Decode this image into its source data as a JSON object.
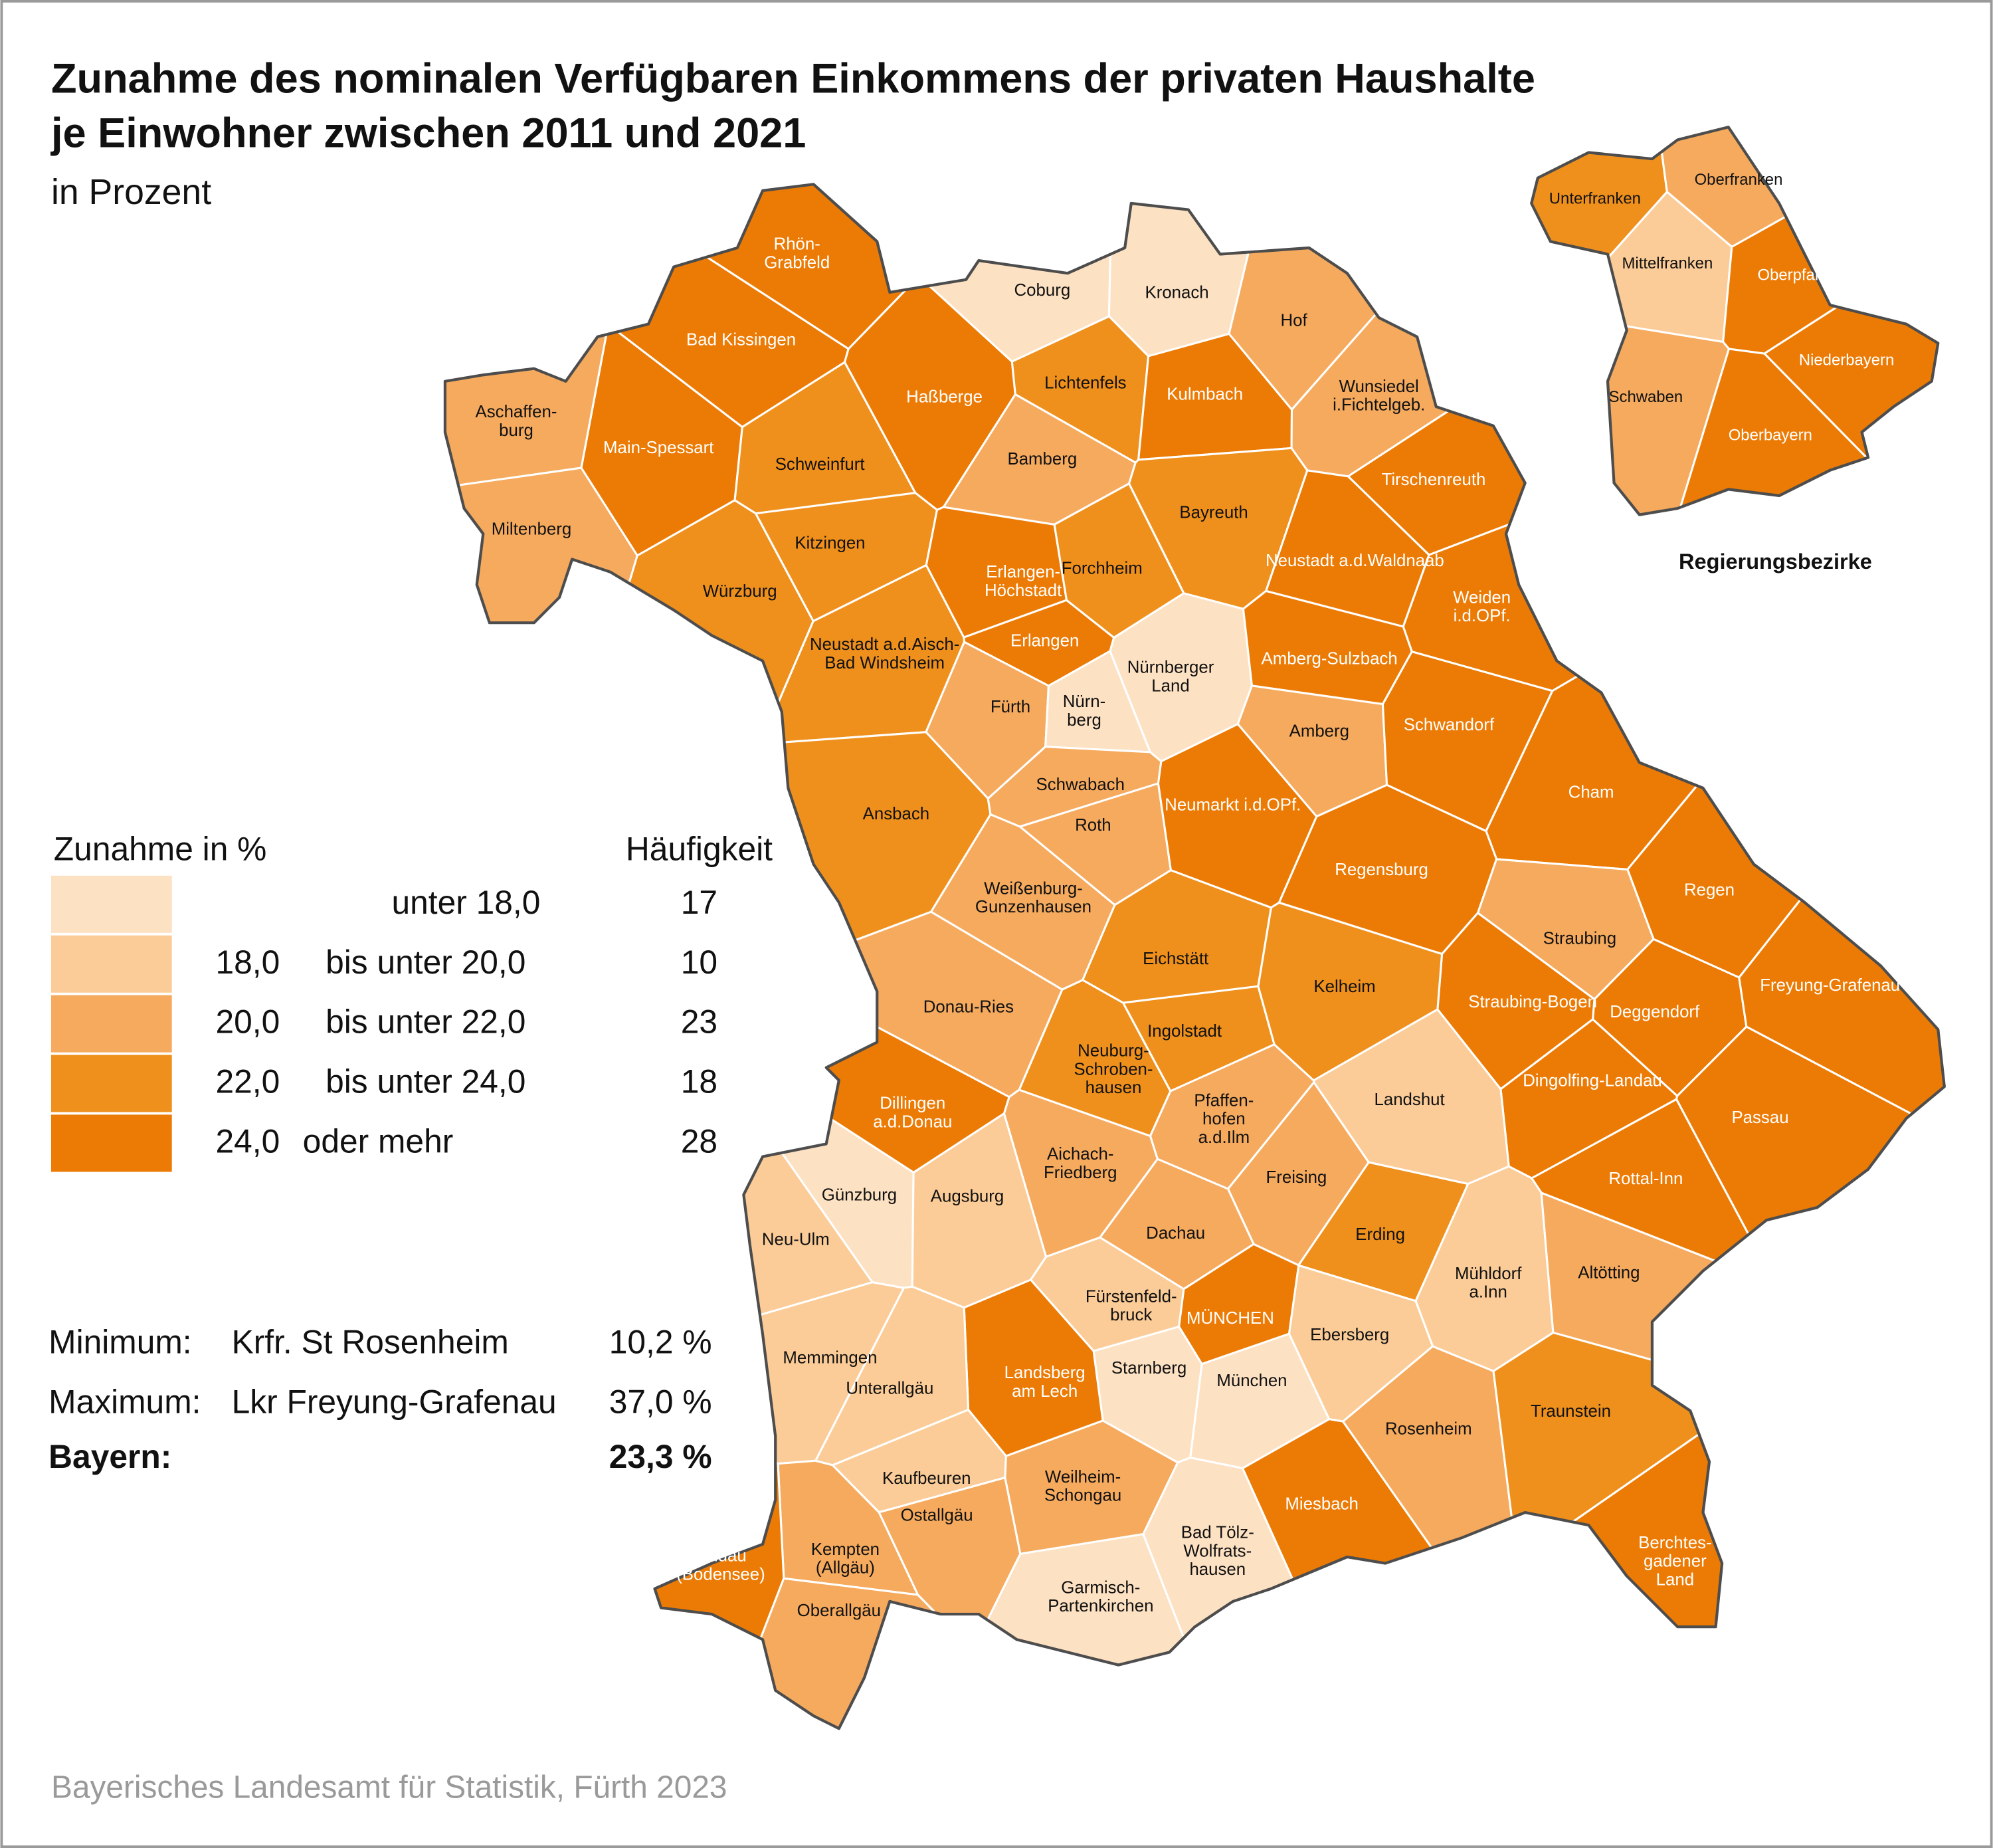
{
  "title": "Zunahme des nominalen Verfügbaren Einkommens der privaten Haushalte\nje Einwohner zwischen 2011 und 2021",
  "subtitle": "in Prozent",
  "legend": {
    "title": "Zunahme in %",
    "count_header": "Häufigkeit",
    "classes": [
      {
        "text": "unter 18,0",
        "count": 17,
        "color": "#fde1c3"
      },
      {
        "lower": "18,0",
        "text": "bis unter 20,0",
        "count": 10,
        "color": "#fbcc97"
      },
      {
        "lower": "20,0",
        "text": "bis unter 22,0",
        "count": 23,
        "color": "#f5aa5e"
      },
      {
        "lower": "22,0",
        "text": "bis unter 24,0",
        "count": 18,
        "color": "#ef901d"
      },
      {
        "lower": "24,0",
        "text": "oder mehr",
        "count": 28,
        "color": "#ec7b05"
      }
    ]
  },
  "stats": [
    {
      "label": "Minimum:",
      "region": "Krfr. St Rosenheim",
      "value": "10,2 %"
    },
    {
      "label": "Maximum:",
      "region": "Lkr Freyung-Grafenau",
      "value": "37,0 %"
    },
    {
      "label": "Bayern:",
      "value": "23,3 %",
      "emphasis": true
    }
  ],
  "districts": [
    {
      "label": "Rhön-\nGrabfeld",
      "class": 4
    },
    {
      "label": "Bad Kissingen",
      "class": 4
    },
    {
      "label": "Haßberge",
      "class": 4
    },
    {
      "label": "Schweinfurt",
      "class": 3
    },
    {
      "label": "Main-Spessart",
      "class": 4
    },
    {
      "label": "Aschaffen-\nburg",
      "class": 2
    },
    {
      "label": "Miltenberg",
      "class": 2
    },
    {
      "label": "Würzburg",
      "class": 3
    },
    {
      "label": "Kitzingen",
      "class": 3
    },
    {
      "label": "Coburg",
      "class": 0
    },
    {
      "label": "Kronach",
      "class": 0
    },
    {
      "label": "Lichtenfels",
      "class": 3
    },
    {
      "label": "Hof",
      "class": 2
    },
    {
      "label": "Kulmbach",
      "class": 4
    },
    {
      "label": "Bamberg",
      "class": 2
    },
    {
      "label": "Bayreuth",
      "class": 3
    },
    {
      "label": "Wunsiedel\ni.Fichtelgeb.",
      "class": 2
    },
    {
      "label": "Forchheim",
      "class": 3
    },
    {
      "label": "Erlangen-\nHöchstadt",
      "class": 4
    },
    {
      "label": "Erlangen",
      "class": 4
    },
    {
      "label": "Neustadt a.d.Aisch-\nBad Windsheim",
      "class": 3
    },
    {
      "label": "Fürth",
      "class": 2
    },
    {
      "label": "Nürn-\nberg",
      "class": 0
    },
    {
      "label": "Nürnberger\nLand",
      "class": 0
    },
    {
      "label": "Ansbach",
      "class": 3
    },
    {
      "label": "Schwabach",
      "class": 2
    },
    {
      "label": "Roth",
      "class": 2
    },
    {
      "label": "Weißenburg-\nGunzenhausen",
      "class": 2
    },
    {
      "label": "Tirschenreuth",
      "class": 4
    },
    {
      "label": "Neustadt a.d.Waldnaab",
      "class": 4
    },
    {
      "label": "Weiden\ni.d.OPf.",
      "class": 4
    },
    {
      "label": "Amberg-Sulzbach",
      "class": 4
    },
    {
      "label": "Amberg",
      "class": 2
    },
    {
      "label": "Schwandorf",
      "class": 4
    },
    {
      "label": "Cham",
      "class": 4
    },
    {
      "label": "Neumarkt i.d.OPf.",
      "class": 4
    },
    {
      "label": "Regensburg",
      "class": 4
    },
    {
      "label": "Regen",
      "class": 4
    },
    {
      "label": "Straubing",
      "class": 2
    },
    {
      "label": "Straubing-Bogen",
      "class": 4
    },
    {
      "label": "Deggendorf",
      "class": 4
    },
    {
      "label": "Freyung-Grafenau",
      "class": 4
    },
    {
      "label": "Kelheim",
      "class": 3
    },
    {
      "label": "Dingolfing-Landau",
      "class": 4
    },
    {
      "label": "Landshut",
      "class": 1
    },
    {
      "label": "Passau",
      "class": 4
    },
    {
      "label": "Rottal-Inn",
      "class": 4
    },
    {
      "label": "Eichstätt",
      "class": 3
    },
    {
      "label": "Ingolstadt",
      "class": 3
    },
    {
      "label": "Neuburg-\nSchroben-\nhausen",
      "class": 3
    },
    {
      "label": "Pfaffen-\nhofen\na.d.Ilm",
      "class": 2
    },
    {
      "label": "Freising",
      "class": 2
    },
    {
      "label": "Dachau",
      "class": 2
    },
    {
      "label": "Erding",
      "class": 3
    },
    {
      "label": "Mühldorf\na.Inn",
      "class": 1
    },
    {
      "label": "Altötting",
      "class": 2
    },
    {
      "label": "Fürstenfeld-\nbruck",
      "class": 1
    },
    {
      "label": "MÜNCHEN",
      "class": 4
    },
    {
      "label": "München",
      "class": 0
    },
    {
      "label": "Ebersberg",
      "class": 1
    },
    {
      "label": "Starnberg",
      "class": 0
    },
    {
      "label": "Landsberg\nam Lech",
      "class": 4
    },
    {
      "label": "Weilheim-\nSchongau",
      "class": 2
    },
    {
      "label": "Garmisch-\nPartenkirchen",
      "class": 0
    },
    {
      "label": "Bad Tölz-\nWolfrats-\nhausen",
      "class": 0
    },
    {
      "label": "Miesbach",
      "class": 4
    },
    {
      "label": "Rosenheim",
      "class": 2
    },
    {
      "label": "Traunstein",
      "class": 3
    },
    {
      "label": "Berchtes-\ngadener\nLand",
      "class": 4
    },
    {
      "label": "Donau-Ries",
      "class": 2
    },
    {
      "label": "Dillingen\na.d.Donau",
      "class": 4
    },
    {
      "label": "Günzburg",
      "class": 0
    },
    {
      "label": "Augsburg",
      "class": 1
    },
    {
      "label": "Aichach-\nFriedberg",
      "class": 2
    },
    {
      "label": "Neu-Ulm",
      "class": 1
    },
    {
      "label": "Memmingen",
      "class": 1
    },
    {
      "label": "Unterallgäu",
      "class": 1
    },
    {
      "label": "Kaufbeuren",
      "class": 1
    },
    {
      "label": "Ostallgäu",
      "class": 2
    },
    {
      "label": "Kempten\n(Allgäu)",
      "class": 2
    },
    {
      "label": "Lindau\n(Bodensee)",
      "class": 4
    },
    {
      "label": "Oberallgäu",
      "class": 2
    }
  ],
  "inset": {
    "title": "Regierungsbezirke",
    "regions": [
      {
        "label": "Unterfranken",
        "class": 3
      },
      {
        "label": "Oberfranken",
        "class": 2
      },
      {
        "label": "Mittelfranken",
        "class": 1
      },
      {
        "label": "Oberpfalz",
        "class": 4
      },
      {
        "label": "Niederbayern",
        "class": 4
      },
      {
        "label": "Schwaben",
        "class": 2
      },
      {
        "label": "Oberbayern",
        "class": 4
      }
    ]
  },
  "source": "Bayerisches Landesamt für Statistik, Fürth 2023"
}
